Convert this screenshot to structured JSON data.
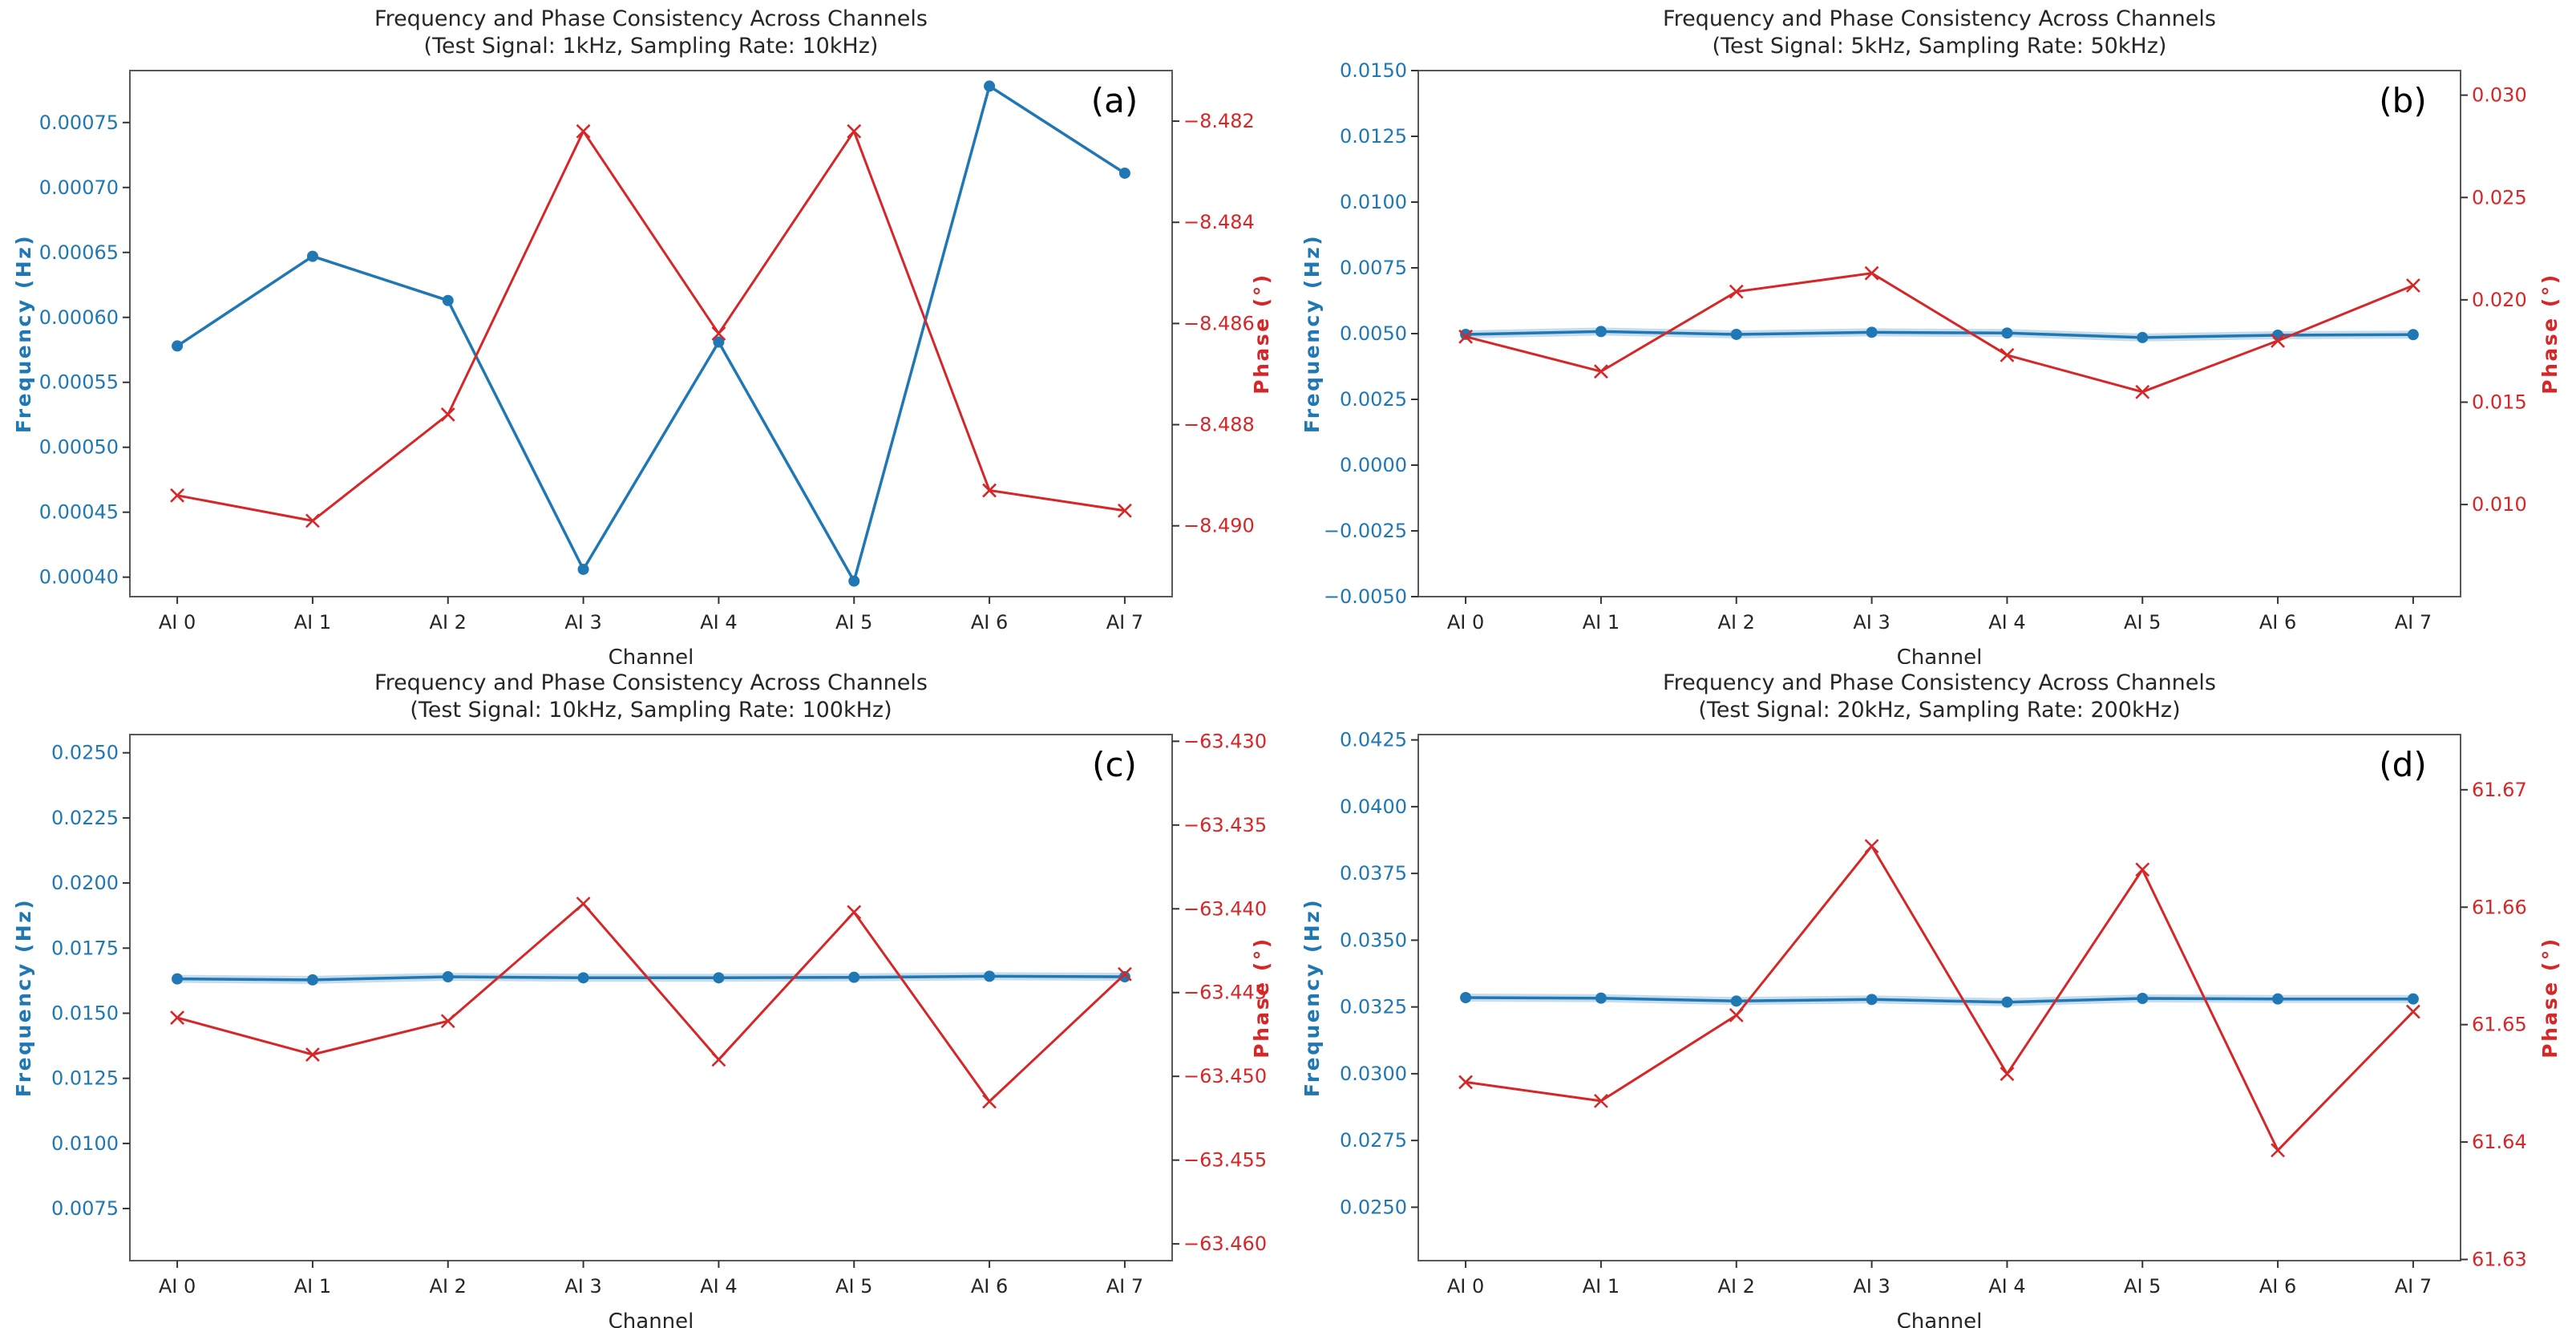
{
  "figure": {
    "background": "#ffffff",
    "freq_color": "#1f77b4",
    "phase_color": "#d62728",
    "frame_color": "#595959",
    "text_color": "#262626",
    "tick_color": "#333333"
  },
  "chart_data": [
    {
      "id": "a",
      "type": "line",
      "panel_label": "(a)",
      "title": "Frequency and Phase Consistency Across Channels",
      "subtitle": "(Test Signal: 1kHz, Sampling Rate: 10kHz)",
      "xlabel": "Channel",
      "categories": [
        "AI 0",
        "AI 1",
        "AI 2",
        "AI 3",
        "AI 4",
        "AI 5",
        "AI 6",
        "AI 7"
      ],
      "grid": false,
      "legend": "none",
      "error_band": false,
      "series": [
        {
          "name": "Frequency (Hz)",
          "axis": "left",
          "marker": "circle",
          "values": [
            0.000578,
            0.000647,
            0.000613,
            0.000406,
            0.000581,
            0.000397,
            0.000778,
            0.000711
          ]
        },
        {
          "name": "Phase (°)",
          "axis": "right",
          "marker": "x",
          "values": [
            -8.4894,
            -8.4899,
            -8.4878,
            -8.4822,
            -8.4862,
            -8.4822,
            -8.4893,
            -8.4897
          ]
        }
      ],
      "left_axis": {
        "label": "Frequency (Hz)",
        "ylim": [
          0.000385,
          0.00079
        ],
        "decimals": 5,
        "ticks": [
          0.00075,
          0.0007,
          0.00065,
          0.0006,
          0.00055,
          0.0005,
          0.00045,
          0.0004
        ]
      },
      "right_axis": {
        "label": "Phase (°)",
        "ylim": [
          -8.4914,
          -8.481
        ],
        "decimals": 3,
        "ticks": [
          -8.482,
          -8.484,
          -8.486,
          -8.488,
          -8.49
        ]
      }
    },
    {
      "id": "b",
      "type": "line",
      "panel_label": "(b)",
      "title": "Frequency and Phase Consistency Across Channels",
      "subtitle": "(Test Signal: 5kHz, Sampling Rate: 50kHz)",
      "xlabel": "Channel",
      "categories": [
        "AI 0",
        "AI 1",
        "AI 2",
        "AI 3",
        "AI 4",
        "AI 5",
        "AI 6",
        "AI 7"
      ],
      "grid": false,
      "legend": "none",
      "error_band": true,
      "series": [
        {
          "name": "Frequency (Hz)",
          "axis": "left",
          "marker": "circle",
          "values": [
            0.00497,
            0.00508,
            0.00497,
            0.00505,
            0.00502,
            0.00485,
            0.00494,
            0.00496
          ]
        },
        {
          "name": "Phase (°)",
          "axis": "right",
          "marker": "x",
          "values": [
            0.0182,
            0.0165,
            0.0204,
            0.0213,
            0.0173,
            0.0155,
            0.018,
            0.0207
          ]
        }
      ],
      "left_axis": {
        "label": "Frequency (Hz)",
        "ylim": [
          -0.005,
          0.015
        ],
        "decimals": 4,
        "ticks": [
          0.015,
          0.0125,
          0.01,
          0.0075,
          0.005,
          0.0025,
          0.0,
          -0.0025,
          -0.005
        ]
      },
      "right_axis": {
        "label": "Phase (°)",
        "ylim": [
          0.0055,
          0.0312
        ],
        "decimals": 3,
        "ticks": [
          0.03,
          0.025,
          0.02,
          0.015,
          0.01
        ]
      }
    },
    {
      "id": "c",
      "type": "line",
      "panel_label": "(c)",
      "title": "Frequency and Phase Consistency Across Channels",
      "subtitle": "(Test Signal: 10kHz, Sampling Rate: 100kHz)",
      "xlabel": "Channel",
      "categories": [
        "AI 0",
        "AI 1",
        "AI 2",
        "AI 3",
        "AI 4",
        "AI 5",
        "AI 6",
        "AI 7"
      ],
      "grid": false,
      "legend": "none",
      "error_band": true,
      "series": [
        {
          "name": "Frequency (Hz)",
          "axis": "left",
          "marker": "circle",
          "values": [
            0.01632,
            0.01628,
            0.0164,
            0.01636,
            0.01636,
            0.01638,
            0.01642,
            0.0164
          ]
        },
        {
          "name": "Phase (°)",
          "axis": "right",
          "marker": "x",
          "values": [
            -63.4465,
            -63.4487,
            -63.4467,
            -63.4397,
            -63.449,
            -63.4402,
            -63.4515,
            -63.4439
          ]
        }
      ],
      "left_axis": {
        "label": "Frequency (Hz)",
        "ylim": [
          0.0055,
          0.0257
        ],
        "decimals": 4,
        "ticks": [
          0.025,
          0.0225,
          0.02,
          0.0175,
          0.015,
          0.0125,
          0.01,
          0.0075
        ]
      },
      "right_axis": {
        "label": "Phase (°)",
        "ylim": [
          -63.461,
          -63.4296
        ],
        "decimals": 3,
        "ticks": [
          -63.43,
          -63.435,
          -63.44,
          -63.445,
          -63.45,
          -63.455,
          -63.46
        ]
      }
    },
    {
      "id": "d",
      "type": "line",
      "panel_label": "(d)",
      "title": "Frequency and Phase Consistency Across Channels",
      "subtitle": "(Test Signal: 20kHz, Sampling Rate: 200kHz)",
      "xlabel": "Channel",
      "categories": [
        "AI 0",
        "AI 1",
        "AI 2",
        "AI 3",
        "AI 4",
        "AI 5",
        "AI 6",
        "AI 7"
      ],
      "grid": false,
      "legend": "none",
      "error_band": true,
      "series": [
        {
          "name": "Frequency (Hz)",
          "axis": "left",
          "marker": "circle",
          "values": [
            0.03285,
            0.03283,
            0.03272,
            0.03278,
            0.03268,
            0.03282,
            0.0328,
            0.0328
          ]
        },
        {
          "name": "Phase (°)",
          "axis": "right",
          "marker": "x",
          "values": [
            61.6451,
            61.6435,
            61.6508,
            61.6652,
            61.6458,
            61.6632,
            61.6393,
            61.6511
          ]
        }
      ],
      "left_axis": {
        "label": "Frequency (Hz)",
        "ylim": [
          0.023,
          0.0427
        ],
        "decimals": 4,
        "ticks": [
          0.0425,
          0.04,
          0.0375,
          0.035,
          0.0325,
          0.03,
          0.0275,
          0.025
        ]
      },
      "right_axis": {
        "label": "Phase (°)",
        "ylim": [
          61.6299,
          61.6747
        ],
        "decimals": 2,
        "ticks": [
          61.67,
          61.66,
          61.65,
          61.64,
          61.63
        ]
      }
    }
  ]
}
